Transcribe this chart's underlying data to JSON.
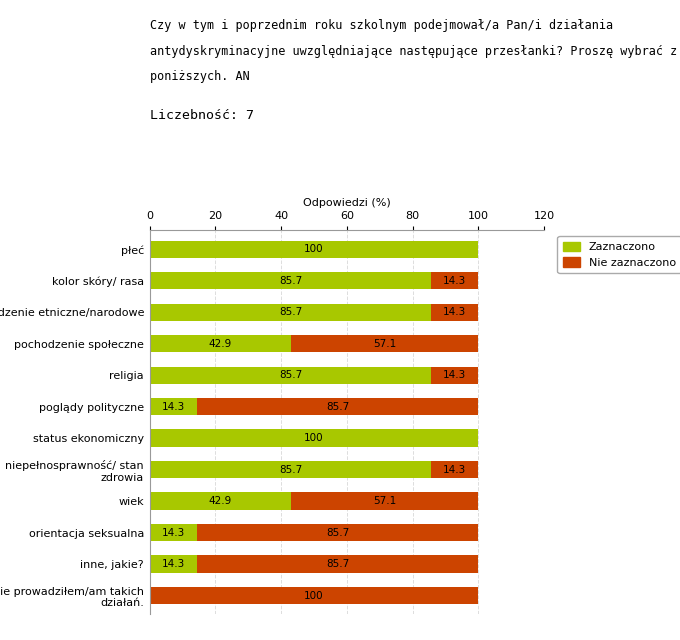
{
  "title_line1": "Czy w tym i poprzednim roku szkolnym podejmował/a Pan/i działania",
  "title_line2": "antydyskryminacyjne uwzględniające następujące przesłanki? Proszę wybrać z",
  "title_line3": "poniższych. AN",
  "subtitle": "Liczebność: 7",
  "xlabel": "Odpowiedzi (%)",
  "categories": [
    "nie prowadziłem/am takich\ndziałań.",
    "inne, jakie?",
    "orientacja seksualna",
    "wiek",
    "niepełnosprawność/ stan\nzdrowia",
    "status ekonomiczny",
    "poglądy polityczne",
    "religia",
    "pochodzenie społeczne",
    "pochodzenie etniczne/narodowe",
    "kolor skóry/ rasa",
    "płeć"
  ],
  "zaznaczono": [
    0,
    14.3,
    14.3,
    42.9,
    85.7,
    100,
    14.3,
    85.7,
    42.9,
    85.7,
    85.7,
    100
  ],
  "nie_zaznaczono": [
    100,
    85.7,
    85.7,
    57.1,
    14.3,
    0,
    85.7,
    14.3,
    57.1,
    14.3,
    14.3,
    0
  ],
  "color_zaznaczono": "#a8c800",
  "color_nie_zaznaczono": "#cc4400",
  "bar_height": 0.55,
  "xlim": [
    0,
    120
  ],
  "xticks": [
    0,
    20,
    40,
    60,
    80,
    100,
    120
  ],
  "legend_zaznaczono": "Zaznaczono",
  "legend_nie_zaznaczono": "Nie zaznaczono",
  "title_fontsize": 8.5,
  "subtitle_fontsize": 9.5,
  "label_fontsize": 8,
  "tick_fontsize": 8,
  "bar_label_fontsize": 7.5,
  "background_color": "#ffffff",
  "grid_color": "#dddddd"
}
